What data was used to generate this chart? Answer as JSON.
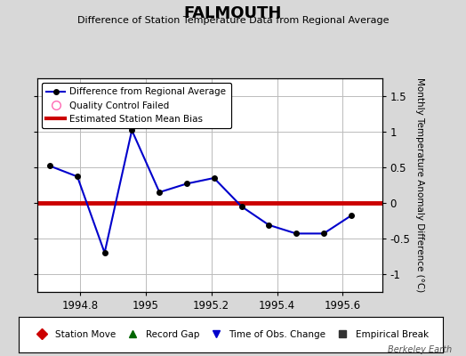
{
  "title": "FALMOUTH",
  "subtitle": "Difference of Station Temperature Data from Regional Average",
  "ylabel": "Monthly Temperature Anomaly Difference (°C)",
  "watermark": "Berkeley Earth",
  "xlim": [
    1994.67,
    1995.72
  ],
  "ylim": [
    -1.25,
    1.75
  ],
  "yticks": [
    -1.0,
    -0.5,
    0.0,
    0.5,
    1.0,
    1.5
  ],
  "xticks": [
    1994.8,
    1995.0,
    1995.2,
    1995.4,
    1995.6
  ],
  "xtick_labels": [
    "1994.8",
    "1995",
    "1995.2",
    "1995.4",
    "1995.6"
  ],
  "x": [
    1994.708,
    1994.792,
    1994.875,
    1994.958,
    1995.042,
    1995.125,
    1995.208,
    1995.292,
    1995.375,
    1995.458,
    1995.542,
    1995.625
  ],
  "y": [
    0.52,
    0.37,
    -0.7,
    1.02,
    0.15,
    0.27,
    0.35,
    -0.05,
    -0.31,
    -0.43,
    -0.43,
    -0.18
  ],
  "bias_value": 0.0,
  "line_color": "#0000cc",
  "marker_color": "#000000",
  "bias_color": "#cc0000",
  "background_color": "#d8d8d8",
  "plot_bg_color": "#ffffff",
  "grid_color": "#bbbbbb",
  "legend1_entries": [
    "Difference from Regional Average",
    "Quality Control Failed",
    "Estimated Station Mean Bias"
  ],
  "legend2_entries": [
    "Station Move",
    "Record Gap",
    "Time of Obs. Change",
    "Empirical Break"
  ],
  "legend2_colors": [
    "#cc0000",
    "#006600",
    "#0000cc",
    "#333333"
  ],
  "legend2_markers": [
    "D",
    "^",
    "v",
    "s"
  ]
}
